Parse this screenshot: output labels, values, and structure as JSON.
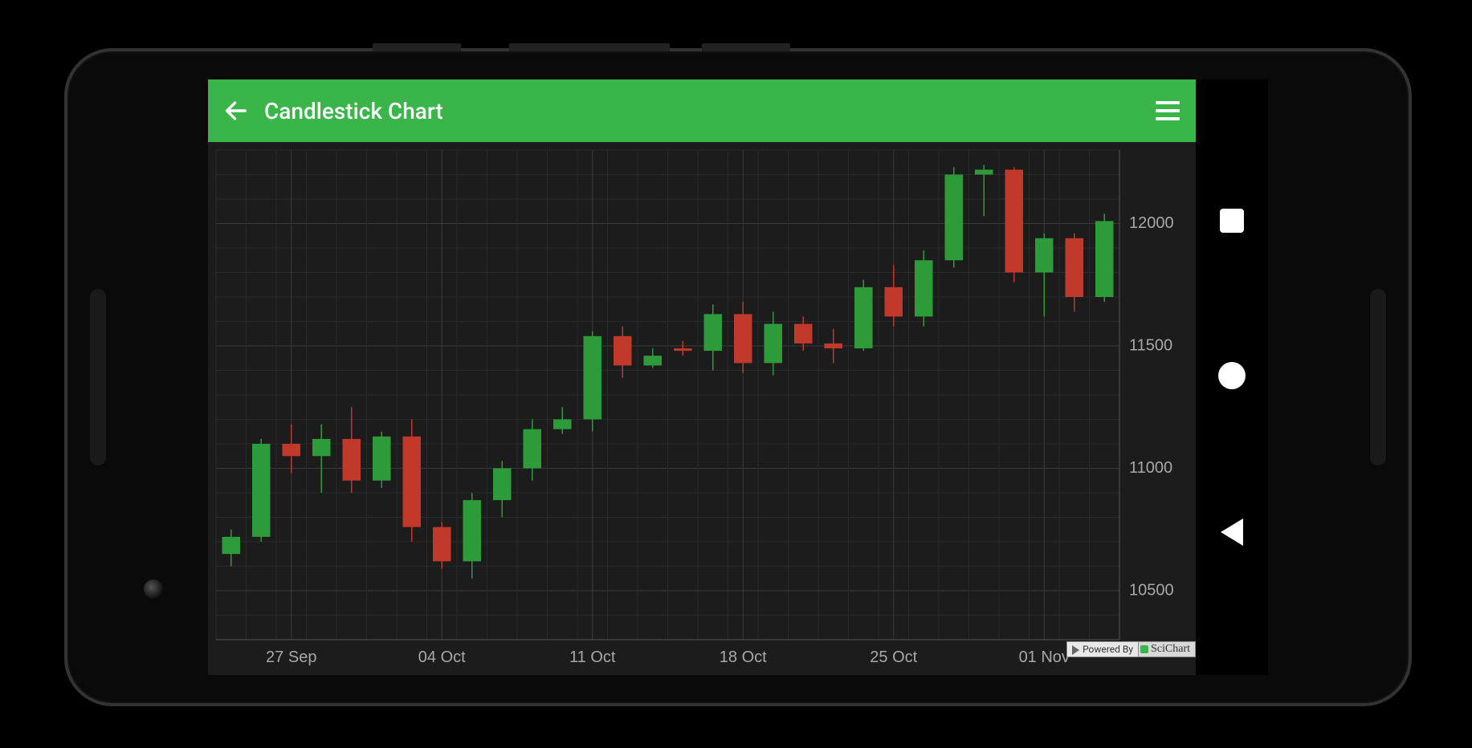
{
  "appbar": {
    "title": "Candlestick Chart",
    "bg_color": "#39b54a",
    "text_color": "#ffffff"
  },
  "navbar": {
    "bg_color": "#000000",
    "icon_color": "#ffffff"
  },
  "watermark": {
    "powered_by": "Powered By",
    "brand": "SciChart"
  },
  "chart": {
    "type": "candlestick",
    "background_color": "#1c1c1c",
    "grid_color_major": "#3a3a3a",
    "grid_color_minor": "#2a2a2a",
    "axis_line_color": "#555555",
    "tick_label_color": "#a8a8a8",
    "tick_label_fontsize": 20,
    "up_color": "#2e9b3a",
    "down_color": "#c0392b",
    "wick_width": 1.5,
    "body_width_ratio": 0.6,
    "y_axis": {
      "min": 10300,
      "max": 12300,
      "ticks": [
        10500,
        11000,
        11500,
        12000
      ],
      "minor_step": 100
    },
    "x_axis": {
      "labels": [
        "27 Sep",
        "04 Oct",
        "11 Oct",
        "18 Oct",
        "25 Oct",
        "01 Nov"
      ],
      "label_positions": [
        2,
        7,
        12,
        17,
        22,
        27
      ]
    },
    "candles": [
      {
        "i": 0,
        "open": 10650,
        "high": 10750,
        "low": 10600,
        "close": 10720
      },
      {
        "i": 1,
        "open": 10720,
        "high": 11120,
        "low": 10700,
        "close": 11100
      },
      {
        "i": 2,
        "open": 11100,
        "high": 11180,
        "low": 10980,
        "close": 11050
      },
      {
        "i": 3,
        "open": 11050,
        "high": 11180,
        "low": 10900,
        "close": 11120
      },
      {
        "i": 4,
        "open": 11120,
        "high": 11250,
        "low": 10900,
        "close": 10950
      },
      {
        "i": 5,
        "open": 10950,
        "high": 11150,
        "low": 10920,
        "close": 11130
      },
      {
        "i": 6,
        "open": 11130,
        "high": 11200,
        "low": 10700,
        "close": 10760
      },
      {
        "i": 7,
        "open": 10760,
        "high": 10780,
        "low": 10590,
        "close": 10620
      },
      {
        "i": 8,
        "open": 10620,
        "high": 10900,
        "low": 10550,
        "close": 10870
      },
      {
        "i": 9,
        "open": 10870,
        "high": 11030,
        "low": 10800,
        "close": 11000
      },
      {
        "i": 10,
        "open": 11000,
        "high": 11200,
        "low": 10950,
        "close": 11160
      },
      {
        "i": 11,
        "open": 11160,
        "high": 11250,
        "low": 11140,
        "close": 11200
      },
      {
        "i": 12,
        "open": 11200,
        "high": 11560,
        "low": 11150,
        "close": 11540
      },
      {
        "i": 13,
        "open": 11540,
        "high": 11580,
        "low": 11370,
        "close": 11420
      },
      {
        "i": 14,
        "open": 11420,
        "high": 11490,
        "low": 11410,
        "close": 11460
      },
      {
        "i": 15,
        "open": 11490,
        "high": 11520,
        "low": 11460,
        "close": 11480
      },
      {
        "i": 16,
        "open": 11480,
        "high": 11670,
        "low": 11400,
        "close": 11630
      },
      {
        "i": 17,
        "open": 11630,
        "high": 11680,
        "low": 11390,
        "close": 11430
      },
      {
        "i": 18,
        "open": 11430,
        "high": 11640,
        "low": 11380,
        "close": 11590
      },
      {
        "i": 19,
        "open": 11590,
        "high": 11620,
        "low": 11480,
        "close": 11510
      },
      {
        "i": 20,
        "open": 11510,
        "high": 11570,
        "low": 11430,
        "close": 11490
      },
      {
        "i": 21,
        "open": 11490,
        "high": 11770,
        "low": 11480,
        "close": 11740
      },
      {
        "i": 22,
        "open": 11740,
        "high": 11830,
        "low": 11580,
        "close": 11620
      },
      {
        "i": 23,
        "open": 11620,
        "high": 11890,
        "low": 11580,
        "close": 11850
      },
      {
        "i": 24,
        "open": 11850,
        "high": 12230,
        "low": 11820,
        "close": 12200
      },
      {
        "i": 25,
        "open": 12200,
        "high": 12240,
        "low": 12030,
        "close": 12220
      },
      {
        "i": 26,
        "open": 12220,
        "high": 12230,
        "low": 11760,
        "close": 11800
      },
      {
        "i": 27,
        "open": 11800,
        "high": 11960,
        "low": 11620,
        "close": 11940
      },
      {
        "i": 28,
        "open": 11940,
        "high": 11960,
        "low": 11640,
        "close": 11700
      },
      {
        "i": 29,
        "open": 11700,
        "high": 12040,
        "low": 11680,
        "close": 12010
      }
    ]
  }
}
